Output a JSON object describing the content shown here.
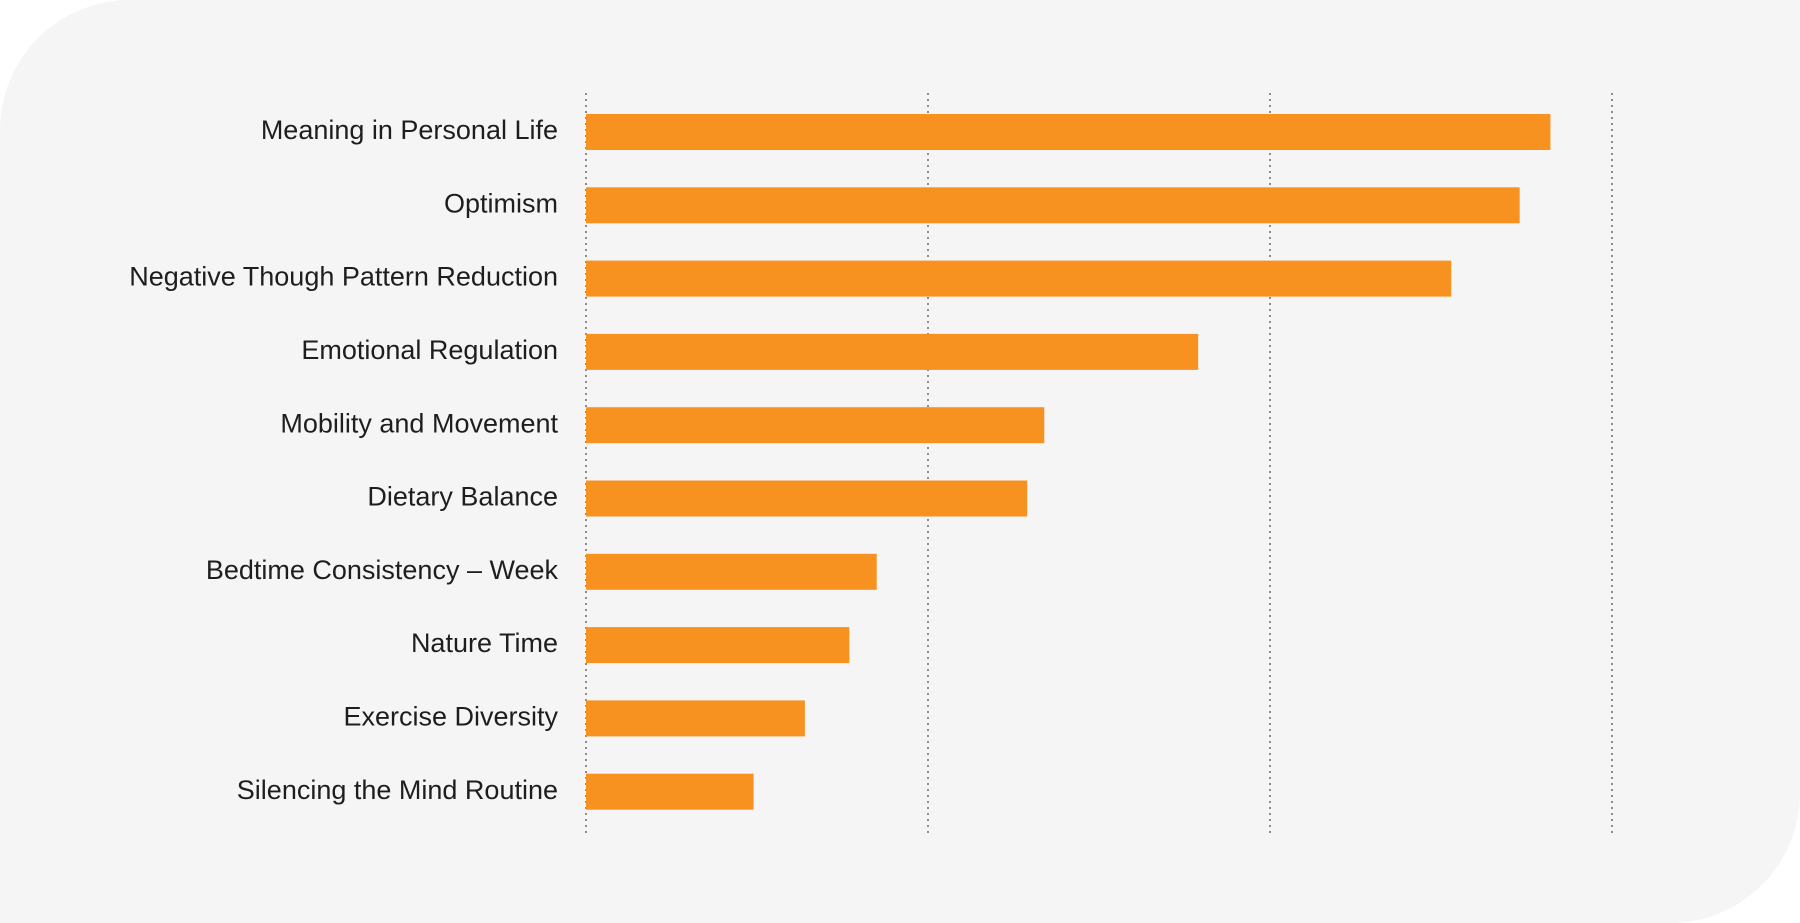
{
  "chart_data": {
    "type": "bar",
    "orientation": "horizontal",
    "title": "",
    "xlabel": "",
    "ylabel": "",
    "categories": [
      "Meaning in Personal Life",
      "Optimism",
      "Negative Though Pattern Reduction",
      "Emotional Regulation",
      "Mobility and Movement",
      "Dietary Balance",
      "Bedtime Consistency – Week",
      "Nature Time",
      "Exercise Diversity",
      "Silencing the Mind Routine"
    ],
    "values": [
      2.82,
      2.73,
      2.53,
      1.79,
      1.34,
      1.29,
      0.85,
      0.77,
      0.64,
      0.49
    ],
    "xlim": [
      0,
      3
    ],
    "grid_ticks": [
      0,
      1,
      2,
      3
    ],
    "tick_labels_shown": false,
    "grid": true,
    "grid_style": "dotted vertical",
    "legend": "none",
    "colors": {
      "bar": "#f79220",
      "background": "#f5f5f5",
      "text": "#1e1e1e",
      "grid": "#6b6b6b"
    }
  }
}
